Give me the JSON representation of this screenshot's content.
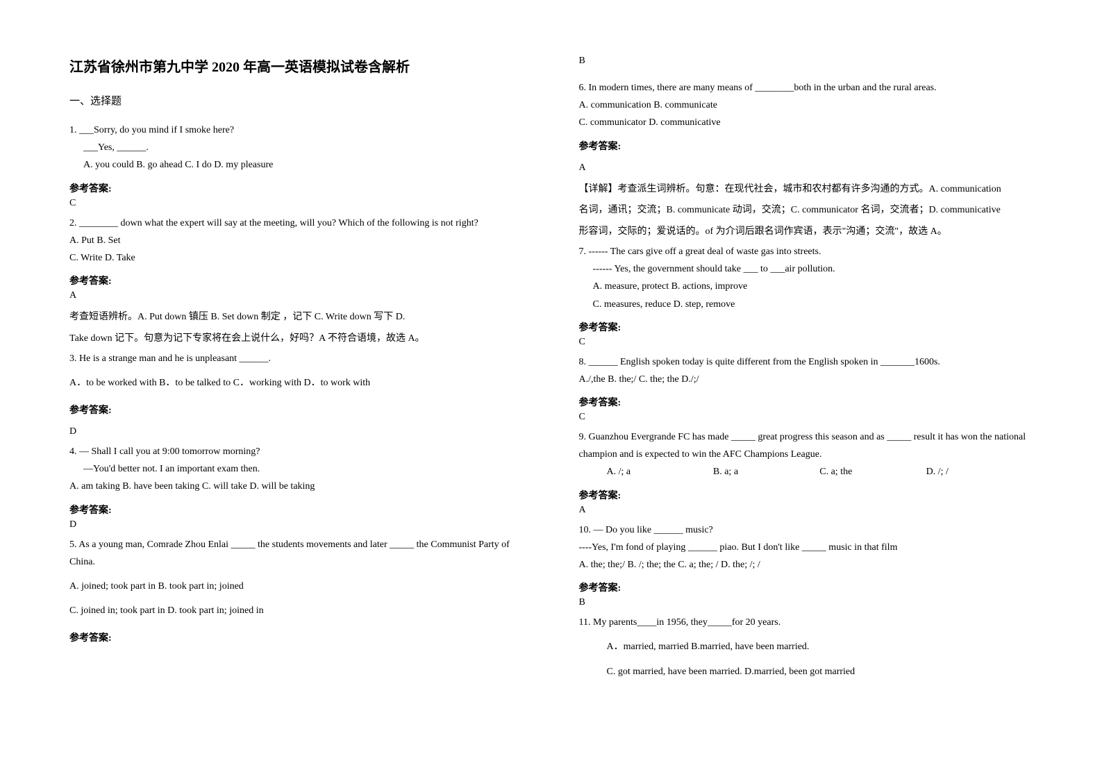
{
  "title": "江苏省徐州市第九中学 2020 年高一英语模拟试卷含解析",
  "section_header": "一、选择题",
  "answer_label": "参考答案:",
  "q1": {
    "num": "1. ___Sorry, do you mind if I smoke here?",
    "line2": "___Yes, ______.",
    "opts": "A. you could      B. go ahead    C. I do      D. my pleasure",
    "ans": "C"
  },
  "q2": {
    "text": "2. ________ down what the expert will say at the meeting, will you? Which of the following is not right?",
    "opts1": "A. Put   B. Set",
    "opts2": "C. Write   D. Take",
    "ans": "A",
    "exp1": "考查短语辨析。A. Put down 镇压      B. Set down 制定     ，记下 C. Write down 写下      D.",
    "exp2": "Take down 记下。句意为记下专家将在会上说什么，好吗？A 不符合语境，故选 A。"
  },
  "q3": {
    "text": "3. He is a strange man and he is unpleasant ______.",
    "opts": "A．to be worked with    B．to be talked to      C．working with        D．to work with",
    "ans": "D"
  },
  "q4": {
    "text": "4. — Shall I call you at 9:00 tomorrow morning?",
    "line2": "—You'd better not. I an important exam then.",
    "opts": "A. am taking    B.      have    been    taking   C.       will take       D.       will be taking",
    "ans": "D"
  },
  "q5": {
    "text": "5. As a young man, Comrade Zhou Enlai _____ the students movements and later _____ the Communist Party of China.",
    "opts1": "A. joined; took part in               B. took part in; joined",
    "opts2": "C. joined in; took part in             D. took part in; joined in",
    "ans": "B"
  },
  "q6": {
    "text": "6. In modern times, there are many means of ________both in  the urban and the rural areas.",
    "opts1": "A. communication      B. communicate",
    "opts2": "C. communicator       D. communicative",
    "ans": "A",
    "exp1": "【详解】考查派生词辨析。句意：在现代社会，城市和农村都有许多沟通的方式。A. communication",
    "exp2": "名词，通讯；交流；B. communicate 动词，交流；C. communicator 名词，交流者；D. communicative",
    "exp3": "形容词，交际的；爱说话的。of 为介词后跟名词作宾语，表示\"沟通；交流\"，故选 A。"
  },
  "q7": {
    "text": "7. ------ The cars give off a great deal of waste gas into streets.",
    "line2": "------ Yes, the government should take ___ to ___air pollution.",
    "opts1": "A. measure, protect                              B. actions, improve",
    "opts2": "C. measures, reduce          D. step, remove",
    "ans": "C"
  },
  "q8": {
    "text": "8. ______ English spoken today is quite different from the English spoken in _______1600s.",
    "opts": "A./,the   B. the;/   C. the; the    D./;/",
    "ans": "C"
  },
  "q9": {
    "text": "9. Guanzhou Evergrande FC has made _____ great progress this season and as _____ result it has won the national champion and is expected to win the AFC Champions League.",
    "optA": "A. /; a",
    "optB": "B. a; a",
    "optC": "C. a; the",
    "optD": "D. /; /",
    "ans": "A"
  },
  "q10": {
    "text": "10. — Do you like ______ music?",
    "line2": "----Yes, I'm fond of playing ______ piao. But I don't like _____ music in that film",
    "opts": "A. the; the;/  B. /; the; the  C. a; the; /   D. the; /; /",
    "ans": "B"
  },
  "q11": {
    "text": "11. My parents____in 1956, they_____for 20 years.",
    "opts1": "A．married, married      B.married, have been married.",
    "opts2": "C. got married, have been married.   D.married, been got married"
  }
}
